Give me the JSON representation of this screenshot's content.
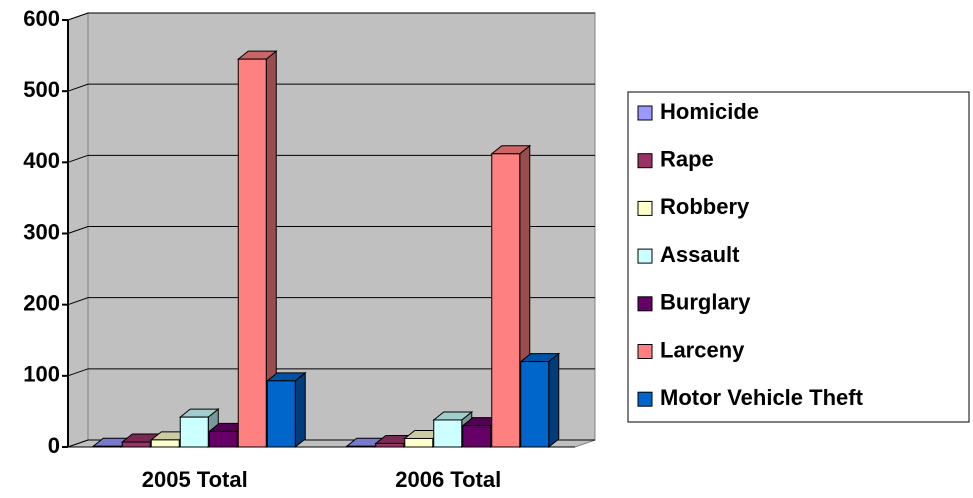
{
  "chart_data": {
    "type": "bar3d",
    "categories": [
      "2005 Total",
      "2006 Total"
    ],
    "series": [
      {
        "name": "Homicide",
        "color": "#9999ff",
        "values": [
          1,
          1
        ]
      },
      {
        "name": "Rape",
        "color": "#993366",
        "values": [
          7,
          5
        ]
      },
      {
        "name": "Robbery",
        "color": "#ffffcc",
        "values": [
          10,
          12
        ]
      },
      {
        "name": "Assault",
        "color": "#ccffff",
        "values": [
          42,
          38
        ]
      },
      {
        "name": "Burglary",
        "color": "#660066",
        "values": [
          22,
          30
        ]
      },
      {
        "name": "Larceny",
        "color": "#ff8080",
        "values": [
          545,
          412
        ]
      },
      {
        "name": "Motor Vehicle Theft",
        "color": "#0066cc",
        "values": [
          93,
          120
        ]
      }
    ],
    "ylim": [
      0,
      600
    ],
    "yticks": [
      0,
      100,
      200,
      300,
      400,
      500,
      600
    ],
    "grid": true,
    "legend": "right",
    "wall_color": "#c0c0c0"
  }
}
